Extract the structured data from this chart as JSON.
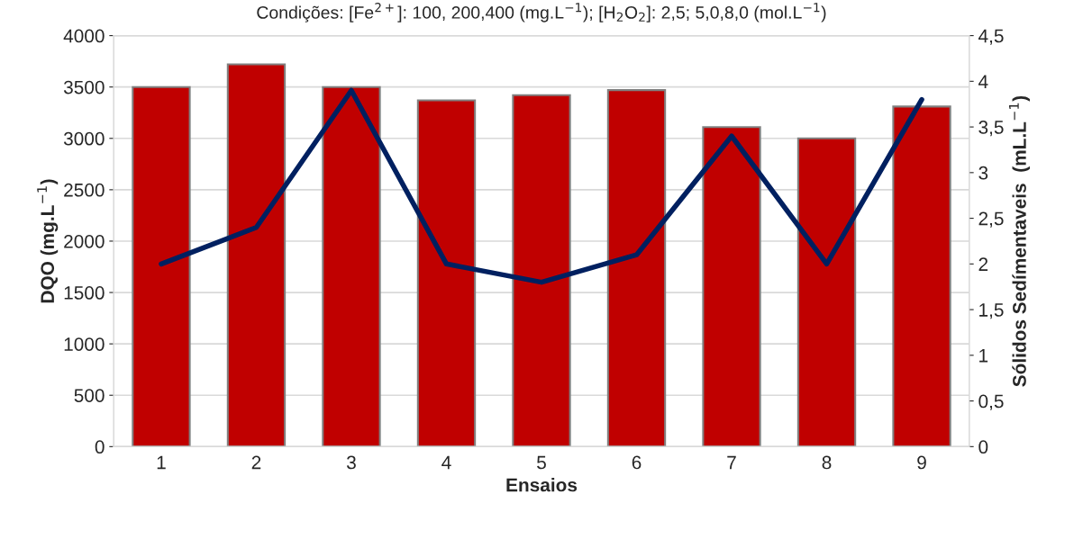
{
  "chart_data": {
    "type": "bar",
    "title": "Condições: [Fe$^{2+}$]: 100, 200,400 (mg.L$^{−1}$); [H$_{2}$O$_{2}$]: 2,5; 5,0,8,0 (mol.L$^{−1}$)",
    "xlabel": "Ensaios",
    "ylabel": "DQO (mg.L$^{−1}$)",
    "y2label": "Sólidos Sedímentaveis  (mL.L$^{−1}$)",
    "categories": [
      "1",
      "2",
      "3",
      "4",
      "5",
      "6",
      "7",
      "8",
      "9"
    ],
    "series": [
      {
        "color": "#c00000",
        "values": [
          3500,
          3720,
          3500,
          3370,
          3420,
          3470,
          3110,
          3000,
          3310
        ]
      },
      {
        "type": "line",
        "axis": "y2",
        "color": "#002060",
        "values": [
          2.0,
          2.4,
          3.9,
          2.0,
          1.8,
          2.1,
          3.4,
          2.0,
          3.8
        ]
      }
    ],
    "ylim": [
      0,
      4000
    ],
    "yticks": [
      0,
      500,
      1000,
      1500,
      2000,
      2500,
      3000,
      3500,
      4000
    ],
    "y2lim": [
      0,
      4.5
    ],
    "y2ticks": [
      0,
      {
        "value": 0.5,
        "label": "0,5"
      },
      1,
      {
        "value": 1.5,
        "label": "1,5"
      },
      2,
      {
        "value": 2.5,
        "label": "2,5"
      },
      3,
      {
        "value": 3.5,
        "label": "3,5"
      },
      4,
      {
        "value": 4.5,
        "label": "4,5"
      }
    ],
    "grid": "y",
    "legend": false
  }
}
